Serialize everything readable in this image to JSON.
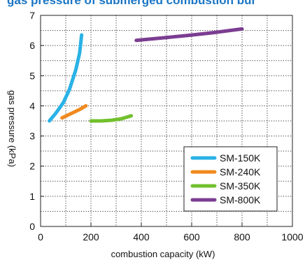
{
  "chart_data": {
    "type": "line",
    "title": "gas pressure of submerged combustion bur",
    "xlabel": "combustion capacity (kW)",
    "ylabel": "gas pressure (kPa)",
    "xlim": [
      0,
      1000
    ],
    "ylim": [
      0,
      7
    ],
    "x_ticks": [
      "0",
      "200",
      "400",
      "600",
      "800",
      "1000"
    ],
    "y_ticks": [
      "0",
      "1",
      "2",
      "3",
      "4",
      "5",
      "6",
      "7"
    ],
    "grid": "dotted",
    "legend_position": "bottom-right",
    "series": [
      {
        "name": "SM-150K",
        "color": "#2ab2e6",
        "points": [
          [
            35,
            3.5
          ],
          [
            60,
            3.75
          ],
          [
            90,
            4.1
          ],
          [
            115,
            4.55
          ],
          [
            140,
            5.2
          ],
          [
            155,
            5.75
          ],
          [
            163,
            6.35
          ]
        ]
      },
      {
        "name": "SM-240K",
        "color": "#f08a1e",
        "points": [
          [
            85,
            3.6
          ],
          [
            110,
            3.7
          ],
          [
            135,
            3.8
          ],
          [
            160,
            3.9
          ],
          [
            180,
            4.0
          ]
        ]
      },
      {
        "name": "SM-350K",
        "color": "#72c02c",
        "points": [
          [
            200,
            3.5
          ],
          [
            240,
            3.5
          ],
          [
            280,
            3.52
          ],
          [
            320,
            3.57
          ],
          [
            360,
            3.67
          ]
        ]
      },
      {
        "name": "SM-800K",
        "color": "#7b3d91",
        "points": [
          [
            380,
            6.17
          ],
          [
            480,
            6.25
          ],
          [
            580,
            6.33
          ],
          [
            680,
            6.42
          ],
          [
            800,
            6.55
          ]
        ]
      }
    ]
  }
}
